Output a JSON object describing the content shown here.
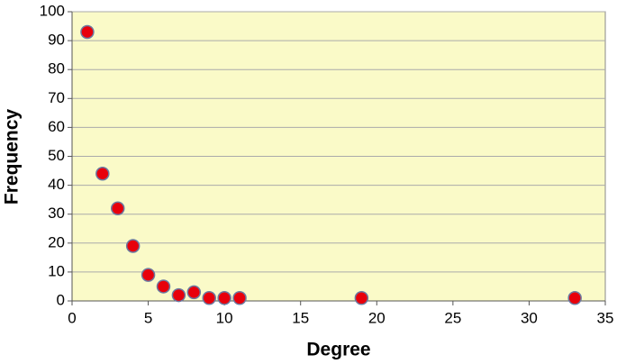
{
  "chart_data": {
    "type": "scatter",
    "x_label": "Degree",
    "y_label": "Frequency",
    "x": [
      1,
      2,
      3,
      4,
      5,
      6,
      7,
      8,
      9,
      10,
      11,
      19,
      33
    ],
    "values": [
      93,
      44,
      32,
      19,
      9,
      5,
      2,
      3,
      1,
      1,
      1,
      1,
      1
    ],
    "color": "#e8000b",
    "edge_color": "#6c7aa0",
    "background": "#fafac8",
    "xlim": [
      0,
      35
    ],
    "xticks": [
      0,
      5,
      10,
      15,
      20,
      25,
      30,
      35
    ],
    "ylim": [
      0,
      100
    ],
    "yticks": [
      0,
      10,
      20,
      30,
      40,
      50,
      60,
      70,
      80,
      90,
      100
    ],
    "grid": true
  }
}
